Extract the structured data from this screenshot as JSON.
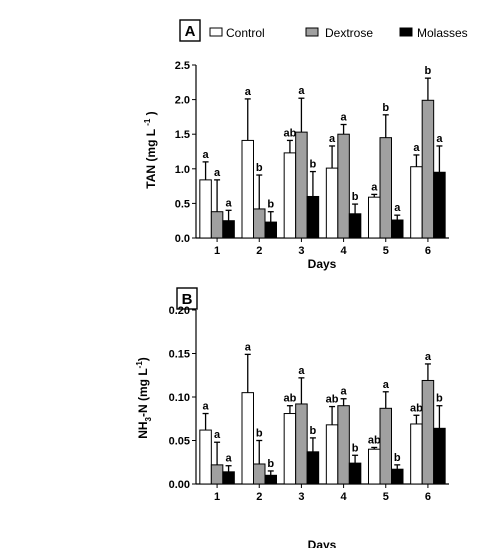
{
  "legend": [
    {
      "label": "Control",
      "color": "#ffffff"
    },
    {
      "label": "Dextrose",
      "color": "#a0a0a0"
    },
    {
      "label": "Molasses",
      "color": "#000000"
    }
  ],
  "chart_data": [
    {
      "type": "bar",
      "panel": "A",
      "categories": [
        "1",
        "2",
        "3",
        "4",
        "5",
        "6"
      ],
      "xlabel": "Days",
      "ylabel": "TAN (mg L -1)",
      "ylim": [
        0,
        2.5
      ],
      "yticks": [
        "0.0",
        "0.5",
        "1.0",
        "1.5",
        "2.0",
        "2.5"
      ],
      "series": [
        {
          "name": "Control",
          "values": [
            0.84,
            1.41,
            1.23,
            1.01,
            0.59,
            1.03
          ],
          "errors": [
            0.26,
            0.6,
            0.18,
            0.32,
            0.04,
            0.17
          ],
          "letters": [
            "a",
            "a",
            "ab",
            "a",
            "a",
            "a"
          ]
        },
        {
          "name": "Dextrose",
          "values": [
            0.38,
            0.42,
            1.53,
            1.5,
            1.45,
            1.99
          ],
          "errors": [
            0.46,
            0.49,
            0.49,
            0.14,
            0.33,
            0.32
          ],
          "letters": [
            "a",
            "b",
            "a",
            "a",
            "b",
            "b"
          ]
        },
        {
          "name": "Molasses",
          "values": [
            0.25,
            0.23,
            0.6,
            0.35,
            0.26,
            0.95
          ],
          "errors": [
            0.15,
            0.15,
            0.36,
            0.14,
            0.07,
            0.38
          ],
          "letters": [
            "a",
            "b",
            "b",
            "b",
            "a",
            "a"
          ]
        }
      ]
    },
    {
      "type": "bar",
      "panel": "B",
      "categories": [
        "1",
        "2",
        "3",
        "4",
        "5",
        "6"
      ],
      "xlabel": "Days",
      "ylabel": "NH3-N (mg L-1)",
      "ylim": [
        0,
        0.2
      ],
      "yticks": [
        "0.00",
        "0.05",
        "0.10",
        "0.15",
        "0.20"
      ],
      "series": [
        {
          "name": "Control",
          "values": [
            0.062,
            0.105,
            0.081,
            0.068,
            0.04,
            0.069
          ],
          "errors": [
            0.019,
            0.044,
            0.009,
            0.021,
            0.002,
            0.01
          ],
          "letters": [
            "a",
            "a",
            "ab",
            "ab",
            "ab",
            "ab"
          ]
        },
        {
          "name": "Dextrose",
          "values": [
            0.022,
            0.023,
            0.092,
            0.09,
            0.087,
            0.119
          ],
          "errors": [
            0.026,
            0.027,
            0.03,
            0.008,
            0.019,
            0.019
          ],
          "letters": [
            "a",
            "b",
            "a",
            "a",
            "a",
            "a"
          ]
        },
        {
          "name": "Molasses",
          "values": [
            0.014,
            0.01,
            0.037,
            0.024,
            0.017,
            0.064
          ],
          "errors": [
            0.007,
            0.005,
            0.016,
            0.009,
            0.005,
            0.026
          ],
          "letters": [
            "a",
            "b",
            "b",
            "b",
            "b",
            "b"
          ]
        }
      ]
    }
  ]
}
